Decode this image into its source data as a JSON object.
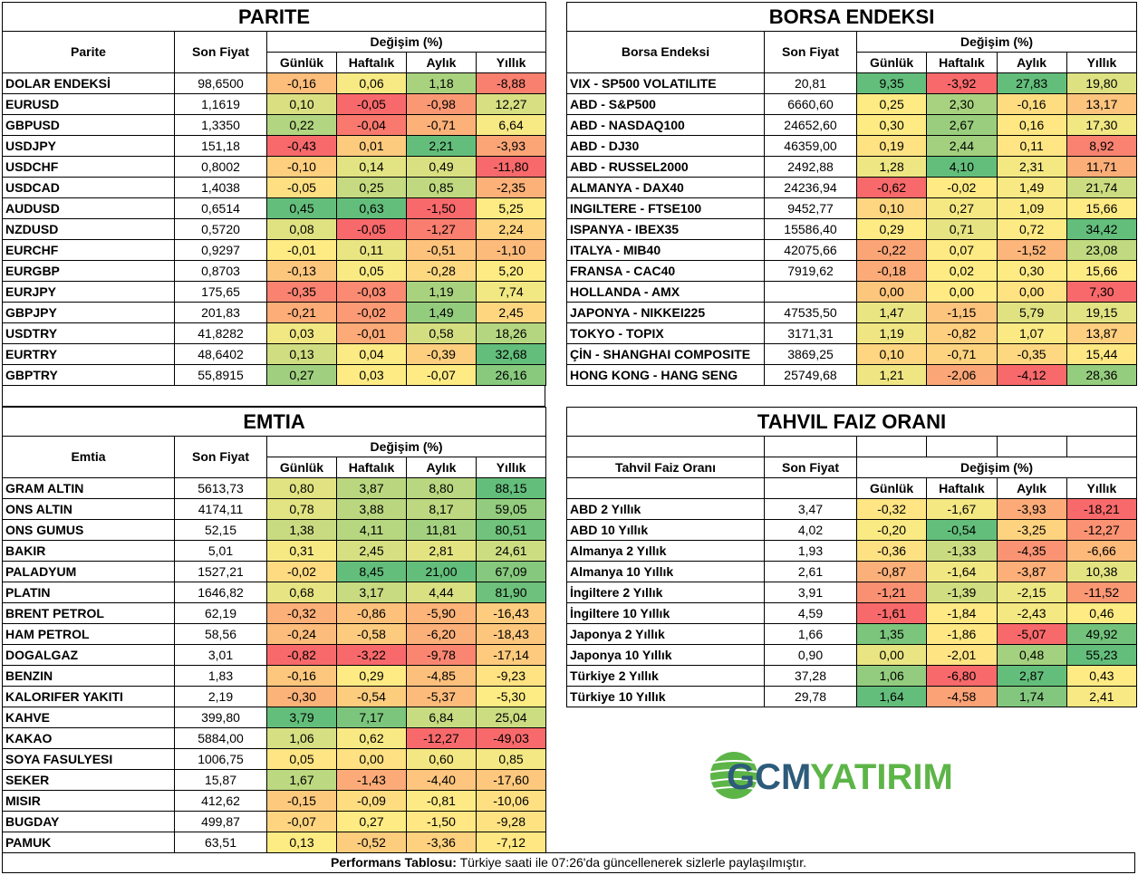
{
  "colors": {
    "min": "#F8696B",
    "mid": "#FFEB84",
    "max": "#63BE7B",
    "logo_blue": "#2D5B7A",
    "logo_green": "#5DB548"
  },
  "change_header": "Değişim (%)",
  "periods": [
    "Günlük",
    "Haftalık",
    "Aylık",
    "Yıllık"
  ],
  "price_header": "Son Fiyat",
  "tables": {
    "parite": {
      "title": "PARITE",
      "name_header": "Parite",
      "rows": [
        [
          "DOLAR ENDEKSİ",
          "98,6500",
          "-0,16",
          "0,06",
          "1,18",
          "-8,88"
        ],
        [
          "EURUSD",
          "1,1619",
          "0,10",
          "-0,05",
          "-0,98",
          "12,27"
        ],
        [
          "GBPUSD",
          "1,3350",
          "0,22",
          "-0,04",
          "-0,71",
          "6,64"
        ],
        [
          "USDJPY",
          "151,18",
          "-0,43",
          "0,01",
          "2,21",
          "-3,93"
        ],
        [
          "USDCHF",
          "0,8002",
          "-0,10",
          "0,14",
          "0,49",
          "-11,80"
        ],
        [
          "USDCAD",
          "1,4038",
          "-0,05",
          "0,25",
          "0,85",
          "-2,35"
        ],
        [
          "AUDUSD",
          "0,6514",
          "0,45",
          "0,63",
          "-1,50",
          "5,25"
        ],
        [
          "NZDUSD",
          "0,5720",
          "0,08",
          "-0,05",
          "-1,27",
          "2,24"
        ],
        [
          "EURCHF",
          "0,9297",
          "-0,01",
          "0,11",
          "-0,51",
          "-1,10"
        ],
        [
          "EURGBP",
          "0,8703",
          "-0,13",
          "0,05",
          "-0,28",
          "5,20"
        ],
        [
          "EURJPY",
          "175,65",
          "-0,35",
          "-0,03",
          "1,19",
          "7,74"
        ],
        [
          "GBPJPY",
          "201,83",
          "-0,21",
          "-0,02",
          "1,49",
          "2,45"
        ],
        [
          "USDTRY",
          "41,8282",
          "0,03",
          "-0,01",
          "0,58",
          "18,26"
        ],
        [
          "EURTRY",
          "48,6402",
          "0,13",
          "0,04",
          "-0,39",
          "32,68"
        ],
        [
          "GBPTRY",
          "55,8915",
          "0,27",
          "0,03",
          "-0,07",
          "26,16"
        ]
      ]
    },
    "borsa": {
      "title": "BORSA ENDEKSI",
      "name_header": "Borsa Endeksi",
      "rows": [
        [
          "VIX  - SP500 VOLATILITE",
          "20,81",
          "9,35",
          "-3,92",
          "27,83",
          "19,80"
        ],
        [
          "ABD - S&P500",
          "6660,60",
          "0,25",
          "2,30",
          "-0,16",
          "13,17"
        ],
        [
          "ABD - NASDAQ100",
          "24652,60",
          "0,30",
          "2,67",
          "0,16",
          "17,30"
        ],
        [
          "ABD - DJ30",
          "46359,00",
          "0,19",
          "2,44",
          "0,11",
          "8,92"
        ],
        [
          "ABD - RUSSEL2000",
          "2492,88",
          "1,28",
          "4,10",
          "2,31",
          "11,71"
        ],
        [
          "ALMANYA - DAX40",
          "24236,94",
          "-0,62",
          "-0,02",
          "1,49",
          "21,74"
        ],
        [
          "INGILTERE - FTSE100",
          "9452,77",
          "0,10",
          "0,27",
          "1,09",
          "15,66"
        ],
        [
          "ISPANYA - IBEX35",
          "15586,40",
          "0,29",
          "0,71",
          "0,72",
          "34,42"
        ],
        [
          "ITALYA - MIB40",
          "42075,66",
          "-0,22",
          "0,07",
          "-1,52",
          "23,08"
        ],
        [
          "FRANSA - CAC40",
          "7919,62",
          "-0,18",
          "0,02",
          "0,30",
          "15,66"
        ],
        [
          "HOLLANDA - AMX",
          "",
          "0,00",
          "0,00",
          "0,00",
          "7,30"
        ],
        [
          "JAPONYA - NIKKEI225",
          "47535,50",
          "1,47",
          "-1,15",
          "5,79",
          "19,15"
        ],
        [
          "TOKYO - TOPIX",
          "3171,31",
          "1,19",
          "-0,82",
          "1,07",
          "13,87"
        ],
        [
          "ÇİN - SHANGHAI COMPOSITE",
          "3869,25",
          "0,10",
          "-0,71",
          "-0,35",
          "15,44"
        ],
        [
          "HONG KONG - HANG SENG",
          "25749,68",
          "1,21",
          "-2,06",
          "-4,12",
          "28,36"
        ]
      ]
    },
    "emtia": {
      "title": "EMTIA",
      "name_header": "Emtia",
      "rows": [
        [
          "GRAM ALTIN",
          "5613,73",
          "0,80",
          "3,87",
          "8,80",
          "88,15"
        ],
        [
          "ONS ALTIN",
          "4174,11",
          "0,78",
          "3,88",
          "8,17",
          "59,05"
        ],
        [
          "ONS GUMUS",
          "52,15",
          "1,38",
          "4,11",
          "11,81",
          "80,51"
        ],
        [
          "BAKIR",
          "5,01",
          "0,31",
          "2,45",
          "2,81",
          "24,61"
        ],
        [
          "PALADYUM",
          "1527,21",
          "-0,02",
          "8,45",
          "21,00",
          "67,09"
        ],
        [
          "PLATIN",
          "1646,82",
          "0,68",
          "3,17",
          "4,44",
          "81,90"
        ],
        [
          "BRENT PETROL",
          "62,19",
          "-0,32",
          "-0,86",
          "-5,90",
          "-16,43"
        ],
        [
          "HAM PETROL",
          "58,56",
          "-0,24",
          "-0,58",
          "-6,20",
          "-18,43"
        ],
        [
          "DOGALGAZ",
          "3,01",
          "-0,82",
          "-3,22",
          "-9,78",
          "-17,14"
        ],
        [
          "BENZIN",
          "1,83",
          "-0,16",
          "0,29",
          "-4,85",
          "-9,23"
        ],
        [
          "KALORIFER YAKITI",
          "2,19",
          "-0,30",
          "-0,54",
          "-5,37",
          "-5,30"
        ],
        [
          "KAHVE",
          "399,80",
          "3,79",
          "7,17",
          "6,84",
          "25,04"
        ],
        [
          "KAKAO",
          "5884,00",
          "1,06",
          "0,62",
          "-12,27",
          "-49,03"
        ],
        [
          "SOYA FASULYESI",
          "1006,75",
          "0,05",
          "0,00",
          "0,60",
          "0,85"
        ],
        [
          "SEKER",
          "15,87",
          "1,67",
          "-1,43",
          "-4,40",
          "-17,60"
        ],
        [
          "MISIR",
          "412,62",
          "-0,15",
          "-0,09",
          "-0,81",
          "-10,06"
        ],
        [
          "BUGDAY",
          "499,87",
          "-0,07",
          "0,27",
          "-1,50",
          "-9,28"
        ],
        [
          "PAMUK",
          "63,51",
          "0,13",
          "-0,52",
          "-3,36",
          "-7,12"
        ]
      ]
    },
    "tahvil": {
      "title": "TAHVIL FAIZ ORANI",
      "name_header": "Tahvil Faiz Oranı",
      "rows": [
        [
          "ABD 2 Yıllık",
          "3,47",
          "-0,32",
          "-1,67",
          "-3,93",
          "-18,21"
        ],
        [
          "ABD 10 Yıllık",
          "4,02",
          "-0,20",
          "-0,54",
          "-3,25",
          "-12,27"
        ],
        [
          "Almanya 2 Yıllık",
          "1,93",
          "-0,36",
          "-1,33",
          "-4,35",
          "-6,66"
        ],
        [
          "Almanya 10 Yıllık",
          "2,61",
          "-0,87",
          "-1,64",
          "-3,87",
          "10,38"
        ],
        [
          "İngiltere 2 Yıllık",
          "3,91",
          "-1,21",
          "-1,39",
          "-2,15",
          "-11,52"
        ],
        [
          "İngiltere 10 Yıllık",
          "4,59",
          "-1,61",
          "-1,84",
          "-2,43",
          "0,46"
        ],
        [
          "Japonya 2 Yıllık",
          "1,66",
          "1,35",
          "-1,86",
          "-5,07",
          "49,92"
        ],
        [
          "Japonya 10 Yıllık",
          "0,90",
          "0,00",
          "-2,01",
          "0,48",
          "55,23"
        ],
        [
          "Türkiye 2 Yıllık",
          "37,28",
          "1,06",
          "-6,80",
          "2,87",
          "0,43"
        ],
        [
          "Türkiye 10 Yıllık",
          "29,78",
          "1,64",
          "-4,58",
          "1,74",
          "2,41"
        ]
      ]
    }
  },
  "footer": {
    "label": "Performans Tablosu:",
    "text": " Türkiye saati ile 07:26'da güncellenerek sizlerle paylaşılmıştır."
  },
  "logo": {
    "text_a": "GCM",
    "text_b": "YATIRIM"
  }
}
